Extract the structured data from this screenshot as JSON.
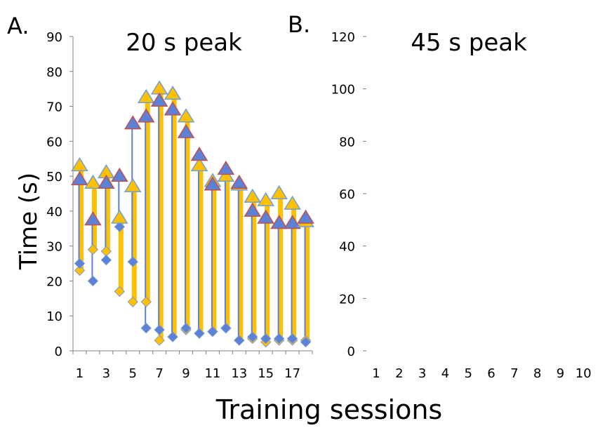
{
  "panel_a": {
    "letter": "A.",
    "title": "20 s peak",
    "y_ticks": [
      "90",
      "80",
      "70",
      "60",
      "50",
      "40",
      "30",
      "20",
      "10",
      "0"
    ],
    "x_ticks": [
      "1",
      "3",
      "5",
      "7",
      "9",
      "11",
      "13",
      "15",
      "17"
    ]
  },
  "panel_b": {
    "letter": "B.",
    "title": "45 s peak",
    "y_ticks": [
      "120",
      "100",
      "80",
      "60",
      "40",
      "20",
      "0"
    ],
    "x_ticks": [
      "1",
      "2",
      "3",
      "4",
      "5",
      "6",
      "7",
      "8",
      "9",
      "10"
    ]
  },
  "ylabel": "Time (s)",
  "xlabel": "Training sessions",
  "colors": {
    "series_a": "#ffc000",
    "series_b": "#5b82d6",
    "marker_outline_a": "#6fa0d8",
    "marker_outline_b": "#c0504d",
    "axis": "#7f7f7f"
  },
  "chart_data": [
    {
      "type": "line",
      "title": "20 s peak",
      "xlabel": "Training sessions",
      "ylabel": "Time (s)",
      "ylim": [
        0,
        90
      ],
      "categories": [
        1,
        2,
        3,
        4,
        5,
        6,
        7,
        8,
        9,
        10,
        11,
        12,
        13,
        14,
        15,
        16,
        17,
        18
      ],
      "series": [
        {
          "role": "start",
          "values": [
            23,
            29,
            28.5,
            17,
            14,
            14,
            3,
            4,
            6,
            5,
            5.5,
            6.5,
            3,
            3.5,
            2.5,
            3,
            3,
            3
          ]
        },
        {
          "role": "stop",
          "values": [
            53,
            48,
            51,
            38,
            47,
            72.5,
            75,
            73.5,
            67,
            53,
            48.5,
            50,
            47.5,
            44,
            43,
            45,
            42,
            37
          ]
        },
        {
          "role": "start",
          "values": [
            25,
            20,
            26,
            35.5,
            25.5,
            6.5,
            6,
            4,
            6.5,
            5,
            5.5,
            6.5,
            3,
            4,
            3.5,
            3.5,
            3.5,
            2.5
          ]
        },
        {
          "role": "stop",
          "values": [
            49,
            37.5,
            48,
            50,
            65,
            67,
            71.5,
            69,
            62.5,
            56,
            47.5,
            52,
            48,
            40,
            38,
            36.5,
            36.5,
            38
          ]
        }
      ]
    },
    {
      "type": "line",
      "title": "45 s peak",
      "xlabel": "Training sessions",
      "ylabel": "Time (s)",
      "ylim": [
        0,
        120
      ],
      "categories": [
        1,
        2,
        3,
        4,
        5,
        6,
        7,
        8,
        9,
        10
      ],
      "series": []
    }
  ]
}
